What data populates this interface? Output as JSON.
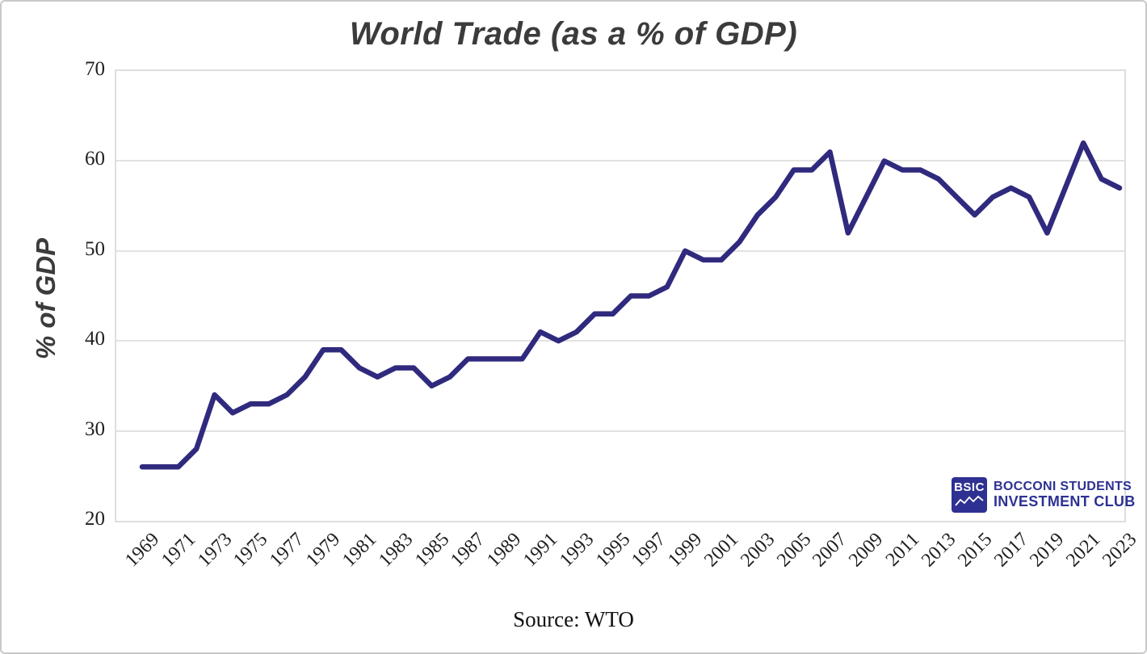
{
  "title": "World Trade (as a % of GDP)",
  "source_note": "Source: WTO",
  "logo": {
    "abbr": "BSIC",
    "line1": "BOCCONI STUDENTS",
    "line2": "INVESTMENT CLUB",
    "color": "#2e3192"
  },
  "colors": {
    "line": "#302a7e",
    "grid": "#e2e2e2",
    "tick_text": "#1f1f1f",
    "title_text": "#3b3b3b"
  },
  "chart_data": {
    "type": "line",
    "title": "World Trade (as a % of GDP)",
    "xlabel": "",
    "ylabel": "% of GDP",
    "ylim": [
      20,
      70
    ],
    "y_ticks": [
      70,
      60,
      50,
      40,
      30,
      20
    ],
    "x_tick_labels": [
      "1969",
      "1971",
      "1973",
      "1975",
      "1977",
      "1979",
      "1981",
      "1983",
      "1985",
      "1987",
      "1989",
      "1991",
      "1993",
      "1995",
      "1997",
      "1999",
      "2001",
      "2003",
      "2005",
      "2007",
      "2009",
      "2011",
      "2013",
      "2015",
      "2017",
      "2019",
      "2021",
      "2023"
    ],
    "grid": "horizontal-only",
    "legend": "none",
    "x": [
      1969,
      1970,
      1971,
      1972,
      1973,
      1974,
      1975,
      1976,
      1977,
      1978,
      1979,
      1980,
      1981,
      1982,
      1983,
      1984,
      1985,
      1986,
      1987,
      1988,
      1989,
      1990,
      1991,
      1992,
      1993,
      1994,
      1995,
      1996,
      1997,
      1998,
      1999,
      2000,
      2001,
      2002,
      2003,
      2004,
      2005,
      2006,
      2007,
      2008,
      2009,
      2010,
      2011,
      2012,
      2013,
      2014,
      2015,
      2016,
      2017,
      2018,
      2019,
      2020,
      2021,
      2022,
      2023
    ],
    "series": [
      {
        "name": "World trade as % of GDP",
        "values": [
          26,
          26,
          26,
          28,
          34,
          32,
          33,
          33,
          34,
          36,
          39,
          39,
          37,
          36,
          37,
          37,
          35,
          36,
          38,
          38,
          38,
          38,
          41,
          40,
          41,
          43,
          43,
          45,
          45,
          46,
          50,
          49,
          49,
          51,
          54,
          56,
          59,
          59,
          61,
          52,
          56,
          60,
          59,
          59,
          58,
          56,
          54,
          56,
          57,
          56,
          52,
          57,
          62,
          58,
          57
        ]
      }
    ]
  }
}
